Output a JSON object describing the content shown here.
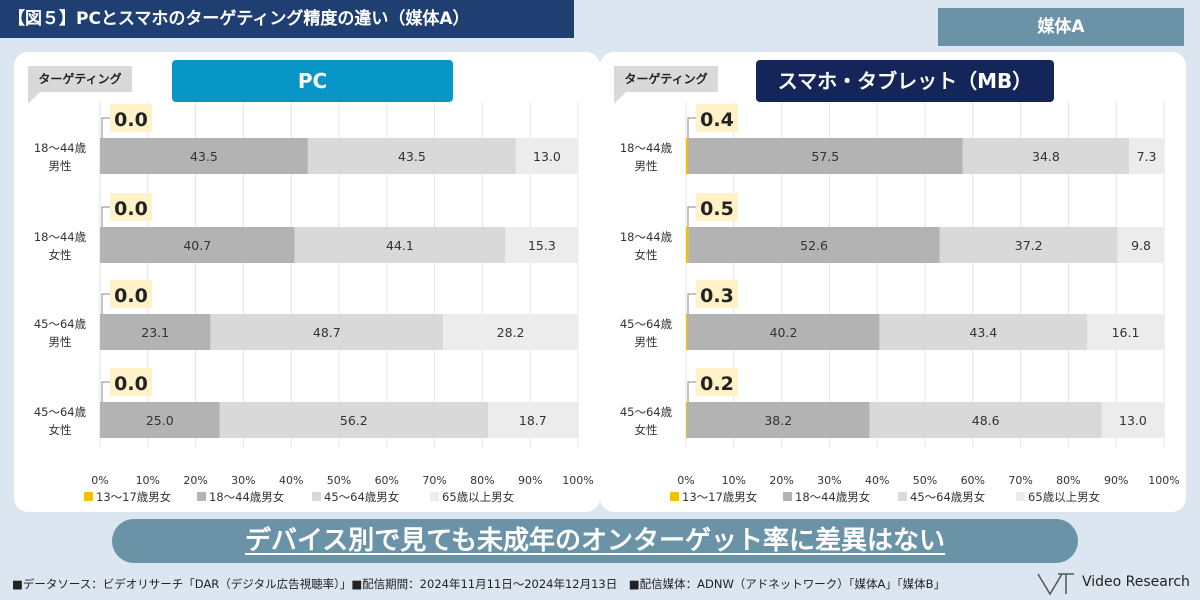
{
  "title": "【図５】PCとスマホのターゲティング精度の違い（媒体A）",
  "media_tag": "媒体A",
  "target_label": "ターゲティング",
  "banner": "デバイス別で見ても未成年のオンターゲット率に差異はない",
  "footnote": "■データソース：ビデオリサーチ「DAR（デジタル広告視聴率）」■配信期間：2024年11月11日～2024年12月13日　■配信媒体：ADNW（アドネットワーク）「媒体A」「媒体B」",
  "brand": "Video Research",
  "colors": {
    "c13": "#f5c000",
    "c18": "#b3b3b3",
    "c45": "#d9d9d9",
    "c65": "#ececec",
    "highlight": "#fff2c8"
  },
  "chart_data": [
    {
      "type": "bar",
      "stacked": true,
      "orientation": "horizontal",
      "title": "PC",
      "categories": [
        "18～44歳 男性",
        "18～44歳 女性",
        "45～64歳 男性",
        "45～64歳 女性"
      ],
      "category_lines": [
        [
          "18～44歳",
          "男性"
        ],
        [
          "18～44歳",
          "女性"
        ],
        [
          "45～64歳",
          "男性"
        ],
        [
          "45～64歳",
          "女性"
        ]
      ],
      "series": [
        {
          "name": "13～17歳男女",
          "values": [
            0.0,
            0.0,
            0.0,
            0.0
          ]
        },
        {
          "name": "18～44歳男女",
          "values": [
            43.5,
            40.7,
            23.1,
            25.0
          ]
        },
        {
          "name": "45～64歳男女",
          "values": [
            43.5,
            44.1,
            48.7,
            56.2
          ]
        },
        {
          "name": "65歳以上男女",
          "values": [
            13.0,
            15.3,
            28.2,
            18.7
          ]
        }
      ],
      "highlight_labels": [
        "0.0",
        "0.0",
        "0.0",
        "0.0"
      ],
      "bar_labels": [
        [
          "43.5",
          "43.5",
          "13.0"
        ],
        [
          "40.7",
          "44.1",
          "15.3"
        ],
        [
          "23.1",
          "48.7",
          "28.2"
        ],
        [
          "25.0",
          "56.2",
          "18.7"
        ]
      ],
      "xlim": [
        0,
        100
      ],
      "xticks": [
        "0%",
        "10%",
        "20%",
        "30%",
        "40%",
        "50%",
        "60%",
        "70%",
        "80%",
        "90%",
        "100%"
      ],
      "legend": "bottom"
    },
    {
      "type": "bar",
      "stacked": true,
      "orientation": "horizontal",
      "title": "スマホ・タブレット（MB）",
      "categories": [
        "18～44歳 男性",
        "18～44歳 女性",
        "45～64歳 男性",
        "45～64歳 女性"
      ],
      "category_lines": [
        [
          "18～44歳",
          "男性"
        ],
        [
          "18～44歳",
          "女性"
        ],
        [
          "45～64歳",
          "男性"
        ],
        [
          "45～64歳",
          "女性"
        ]
      ],
      "series": [
        {
          "name": "13～17歳男女",
          "values": [
            0.4,
            0.5,
            0.3,
            0.2
          ]
        },
        {
          "name": "18～44歳男女",
          "values": [
            57.5,
            52.6,
            40.2,
            38.2
          ]
        },
        {
          "name": "45～64歳男女",
          "values": [
            34.8,
            37.2,
            43.4,
            48.6
          ]
        },
        {
          "name": "65歳以上男女",
          "values": [
            7.3,
            9.8,
            16.1,
            13.0
          ]
        }
      ],
      "highlight_labels": [
        "0.4",
        "0.5",
        "0.3",
        "0.2"
      ],
      "bar_labels": [
        [
          "57.5",
          "34.8",
          "7.3"
        ],
        [
          "52.6",
          "37.2",
          "9.8"
        ],
        [
          "40.2",
          "43.4",
          "16.1"
        ],
        [
          "38.2",
          "48.6",
          "13.0"
        ]
      ],
      "xlim": [
        0,
        100
      ],
      "xticks": [
        "0%",
        "10%",
        "20%",
        "30%",
        "40%",
        "50%",
        "60%",
        "70%",
        "80%",
        "90%",
        "100%"
      ],
      "legend": "bottom"
    }
  ]
}
